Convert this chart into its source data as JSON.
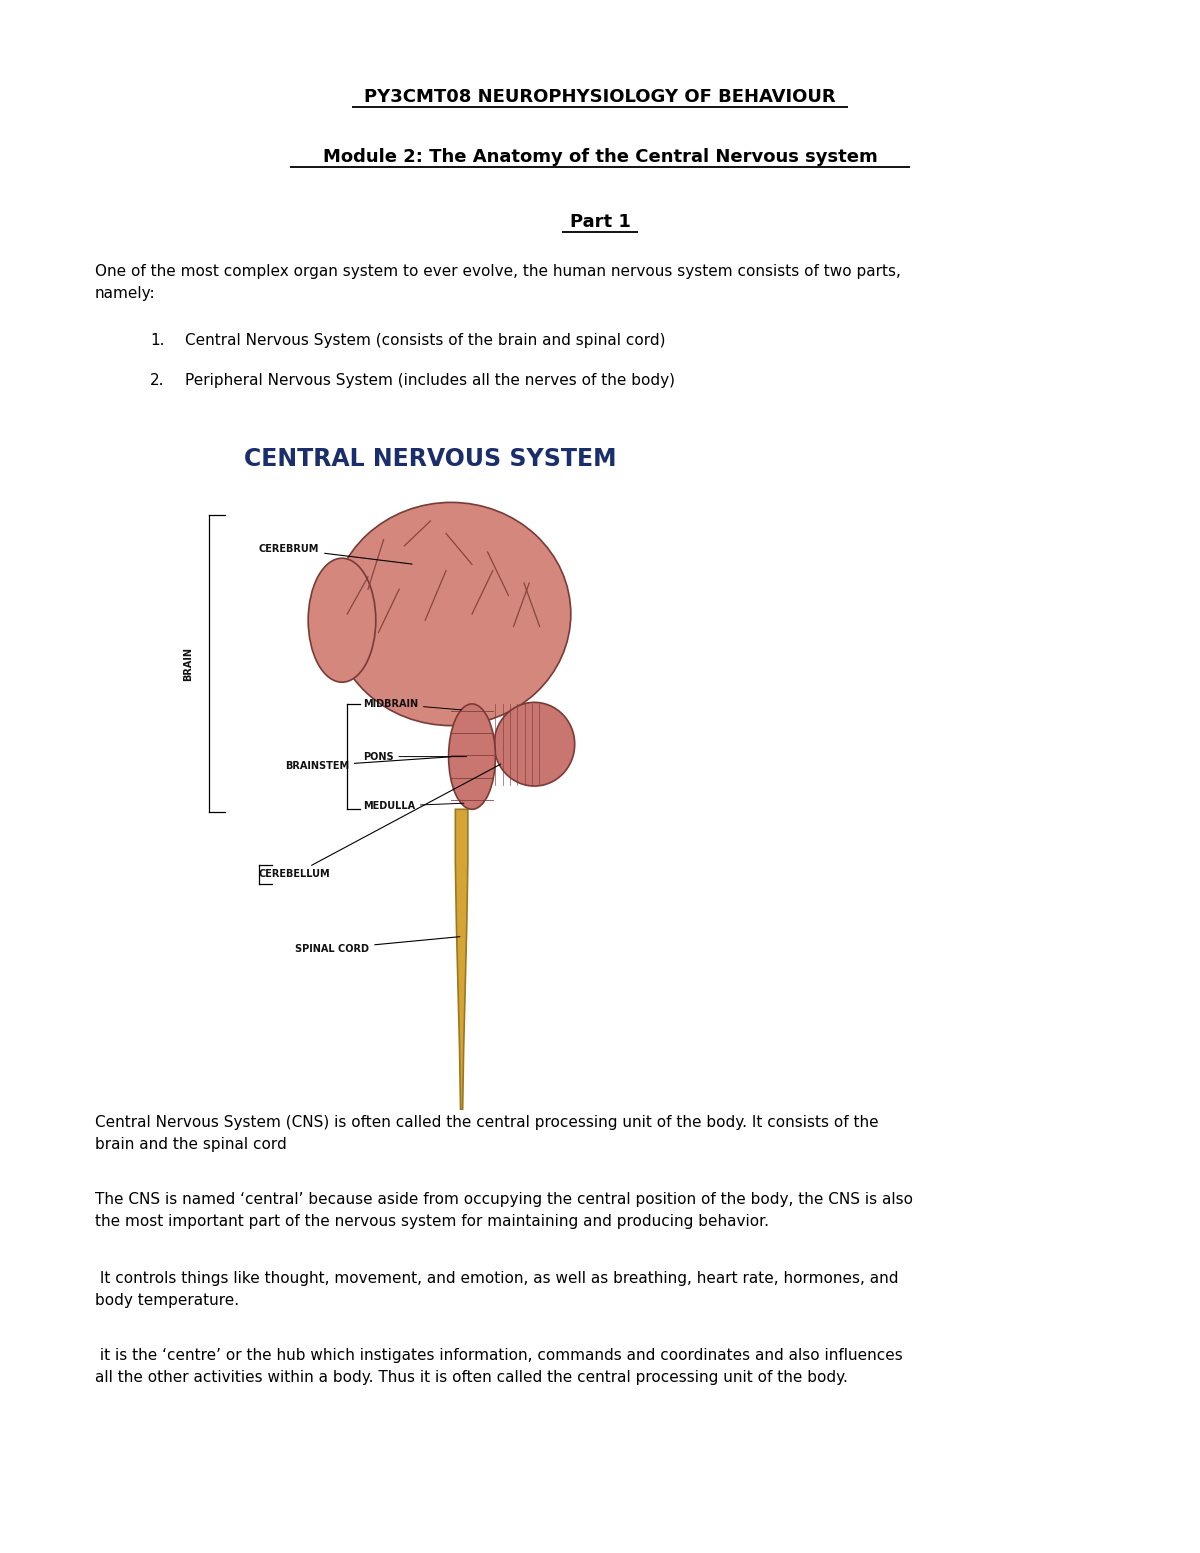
{
  "title1": "PY3CMT08 NEUROPHYSIOLOGY OF BEHAVIOUR",
  "title2": "Module 2: The Anatomy of the Central Nervous system",
  "title3": "Part 1",
  "intro_line1": "One of the most complex organ system to ever evolve, the human nervous system consists of two parts,",
  "intro_line2": "namely:",
  "bullet1": "Central Nervous System (consists of the brain and spinal cord)",
  "bullet2": "Peripheral Nervous System (includes all the nerves of the body)",
  "diagram_title": "CENTRAL NERVOUS SYSTEM",
  "para1_l1": "Central Nervous System (CNS) is often called the central processing unit of the body. It consists of the",
  "para1_l2": "brain and the spinal cord",
  "para2_l1": "The CNS is named ‘central’ because aside from occupying the central position of the body, the CNS is also",
  "para2_l2": "the most important part of the nervous system for maintaining and producing behavior.",
  "para3_l1": " It controls things like thought, movement, and emotion, as well as breathing, heart rate, hormones, and",
  "para3_l2": "body temperature.",
  "para4_l1": " it is the ‘centre’ or the hub which instigates information, commands and coordinates and also influences",
  "para4_l2": "all the other activities within a body. Thus it is often called the central processing unit of the body.",
  "bg_color": "#ffffff",
  "text_color": "#000000",
  "title_color": "#000000",
  "diagram_title_color": "#1a2e6b",
  "font_size_title1": 13,
  "font_size_title2": 13,
  "font_size_title3": 13,
  "font_size_body": 11,
  "font_size_diagram_title": 17,
  "font_size_label": 7
}
